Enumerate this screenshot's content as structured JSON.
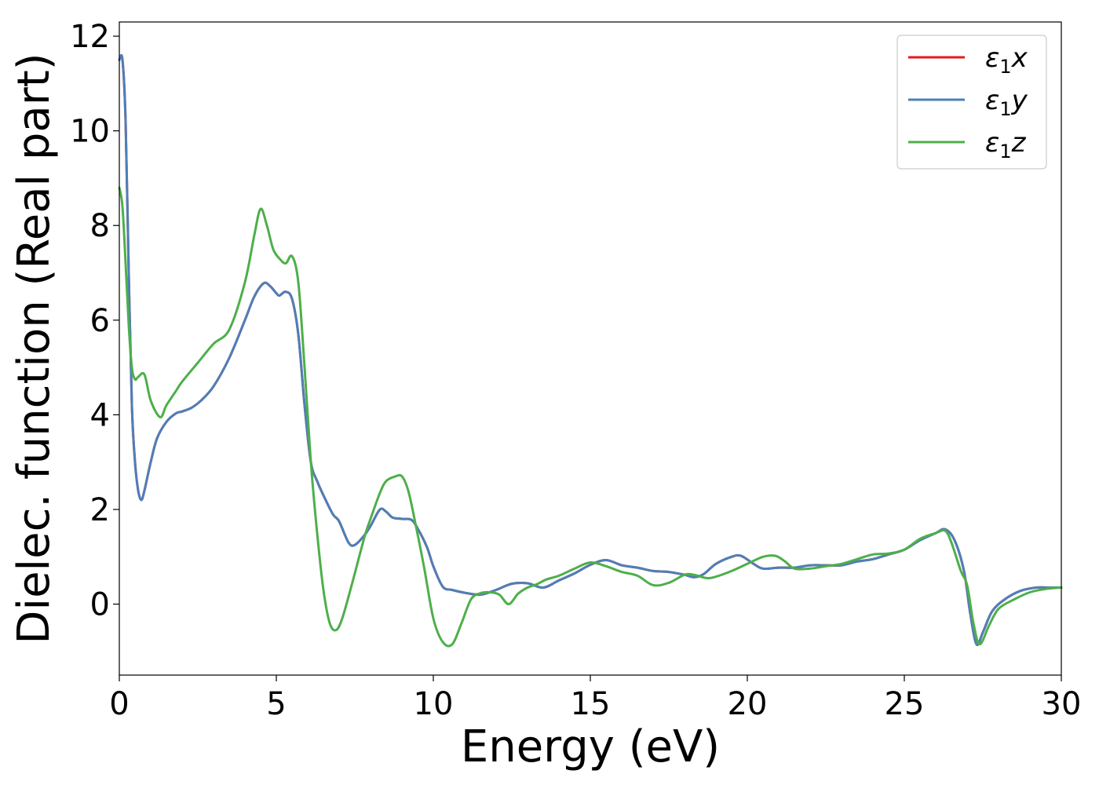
{
  "chart_data": {
    "type": "line",
    "xlabel": "Energy (eV)",
    "ylabel": "Dielec. function (Real part)",
    "xlim": [
      0,
      30
    ],
    "ylim": [
      -1.5,
      12.3
    ],
    "xticks": [
      0,
      5,
      10,
      15,
      20,
      25,
      30
    ],
    "yticks": [
      0,
      2,
      4,
      6,
      8,
      10,
      12
    ],
    "grid": false,
    "legend_position": "top-right",
    "legend": [
      {
        "symbol": "ε",
        "sub": "1",
        "axis": "x"
      },
      {
        "symbol": "ε",
        "sub": "1",
        "axis": "y"
      },
      {
        "symbol": "ε",
        "sub": "1",
        "axis": "z"
      }
    ],
    "series": [
      {
        "name": "ε1x",
        "color": "#e41a1c",
        "x": [
          0,
          0.1,
          0.2,
          0.3,
          0.4,
          0.5,
          0.6,
          0.7,
          0.8,
          1.0,
          1.2,
          1.5,
          1.8,
          2.0,
          2.3,
          2.6,
          3.0,
          3.5,
          4.0,
          4.3,
          4.6,
          4.8,
          5.0,
          5.1,
          5.3,
          5.5,
          5.7,
          5.9,
          6.1,
          6.3,
          6.5,
          6.8,
          7.0,
          7.3,
          7.5,
          7.8,
          8.0,
          8.3,
          8.5,
          8.7,
          9.0,
          9.3,
          9.5,
          9.8,
          10.0,
          10.3,
          10.6,
          11.0,
          11.5,
          12.0,
          12.5,
          13.0,
          13.5,
          14.0,
          14.5,
          15.0,
          15.5,
          16.0,
          16.5,
          17.0,
          17.5,
          18.0,
          18.3,
          18.6,
          19.0,
          19.5,
          19.8,
          20.2,
          20.5,
          21.0,
          21.5,
          22.0,
          22.5,
          23.0,
          23.5,
          24.0,
          24.5,
          25.0,
          25.5,
          26.0,
          26.3,
          26.6,
          26.9,
          27.1,
          27.3,
          27.5,
          27.8,
          28.2,
          28.7,
          29.2,
          29.6,
          30.0
        ],
        "values": [
          11.5,
          11.5,
          10.2,
          7.0,
          4.2,
          3.0,
          2.4,
          2.2,
          2.4,
          3.0,
          3.5,
          3.85,
          4.03,
          4.07,
          4.15,
          4.3,
          4.6,
          5.2,
          6.0,
          6.5,
          6.78,
          6.72,
          6.57,
          6.52,
          6.6,
          6.45,
          5.7,
          4.2,
          3.0,
          2.6,
          2.3,
          1.9,
          1.75,
          1.3,
          1.25,
          1.45,
          1.65,
          2.0,
          1.95,
          1.83,
          1.8,
          1.78,
          1.6,
          1.2,
          0.8,
          0.37,
          0.3,
          0.24,
          0.2,
          0.3,
          0.43,
          0.44,
          0.35,
          0.5,
          0.65,
          0.83,
          0.93,
          0.82,
          0.77,
          0.7,
          0.68,
          0.62,
          0.57,
          0.63,
          0.85,
          1.0,
          1.02,
          0.85,
          0.75,
          0.77,
          0.77,
          0.82,
          0.82,
          0.82,
          0.9,
          0.95,
          1.05,
          1.15,
          1.35,
          1.5,
          1.58,
          1.35,
          0.7,
          -0.2,
          -0.85,
          -0.6,
          -0.15,
          0.1,
          0.28,
          0.35,
          0.35,
          0.35
        ]
      },
      {
        "name": "ε1y",
        "color": "#4d7fb8",
        "x": [
          0,
          0.1,
          0.2,
          0.3,
          0.4,
          0.5,
          0.6,
          0.7,
          0.8,
          1.0,
          1.2,
          1.5,
          1.8,
          2.0,
          2.3,
          2.6,
          3.0,
          3.5,
          4.0,
          4.3,
          4.6,
          4.8,
          5.0,
          5.1,
          5.3,
          5.5,
          5.7,
          5.9,
          6.1,
          6.3,
          6.5,
          6.8,
          7.0,
          7.3,
          7.5,
          7.8,
          8.0,
          8.3,
          8.5,
          8.7,
          9.0,
          9.3,
          9.5,
          9.8,
          10.0,
          10.3,
          10.6,
          11.0,
          11.5,
          12.0,
          12.5,
          13.0,
          13.5,
          14.0,
          14.5,
          15.0,
          15.5,
          16.0,
          16.5,
          17.0,
          17.5,
          18.0,
          18.3,
          18.6,
          19.0,
          19.5,
          19.8,
          20.2,
          20.5,
          21.0,
          21.5,
          22.0,
          22.5,
          23.0,
          23.5,
          24.0,
          24.5,
          25.0,
          25.5,
          26.0,
          26.3,
          26.6,
          26.9,
          27.1,
          27.3,
          27.5,
          27.8,
          28.2,
          28.7,
          29.2,
          29.6,
          30.0
        ],
        "values": [
          11.5,
          11.5,
          10.2,
          7.0,
          4.2,
          3.0,
          2.4,
          2.2,
          2.4,
          3.0,
          3.5,
          3.85,
          4.03,
          4.07,
          4.15,
          4.3,
          4.6,
          5.2,
          6.0,
          6.5,
          6.78,
          6.72,
          6.57,
          6.52,
          6.6,
          6.45,
          5.7,
          4.2,
          3.0,
          2.6,
          2.3,
          1.9,
          1.75,
          1.3,
          1.25,
          1.45,
          1.65,
          2.0,
          1.95,
          1.83,
          1.8,
          1.78,
          1.6,
          1.2,
          0.8,
          0.37,
          0.3,
          0.24,
          0.2,
          0.3,
          0.43,
          0.44,
          0.35,
          0.5,
          0.65,
          0.83,
          0.93,
          0.82,
          0.77,
          0.7,
          0.68,
          0.62,
          0.57,
          0.63,
          0.85,
          1.0,
          1.02,
          0.85,
          0.75,
          0.77,
          0.77,
          0.82,
          0.82,
          0.82,
          0.9,
          0.95,
          1.05,
          1.15,
          1.35,
          1.5,
          1.58,
          1.35,
          0.7,
          -0.2,
          -0.85,
          -0.6,
          -0.15,
          0.1,
          0.28,
          0.35,
          0.35,
          0.35
        ]
      },
      {
        "name": "ε1z",
        "color": "#4daf4a",
        "x": [
          0,
          0.1,
          0.2,
          0.3,
          0.4,
          0.5,
          0.6,
          0.8,
          1.0,
          1.3,
          1.5,
          1.8,
          2.0,
          2.5,
          3.0,
          3.5,
          4.0,
          4.3,
          4.5,
          4.7,
          4.9,
          5.1,
          5.3,
          5.5,
          5.7,
          5.9,
          6.1,
          6.3,
          6.5,
          6.7,
          6.9,
          7.1,
          7.4,
          7.8,
          8.0,
          8.3,
          8.5,
          8.8,
          9.0,
          9.2,
          9.4,
          9.7,
          10.0,
          10.3,
          10.6,
          10.9,
          11.2,
          11.5,
          11.8,
          12.1,
          12.4,
          12.7,
          13.0,
          13.3,
          13.6,
          14.0,
          14.5,
          15.0,
          15.5,
          16.0,
          16.5,
          17.0,
          17.5,
          18.0,
          18.3,
          18.7,
          19.0,
          19.5,
          20.0,
          20.5,
          20.9,
          21.2,
          21.5,
          22.0,
          22.5,
          23.0,
          23.5,
          24.0,
          24.5,
          25.0,
          25.5,
          26.0,
          26.3,
          26.5,
          26.8,
          27.0,
          27.2,
          27.4,
          27.7,
          28.0,
          28.5,
          29.0,
          29.5,
          30.0
        ],
        "values": [
          8.8,
          8.4,
          7.2,
          5.9,
          5.0,
          4.75,
          4.8,
          4.85,
          4.3,
          3.95,
          4.2,
          4.5,
          4.7,
          5.1,
          5.5,
          5.8,
          6.8,
          7.8,
          8.35,
          8.0,
          7.5,
          7.3,
          7.2,
          7.35,
          6.8,
          5.0,
          3.0,
          1.5,
          0.3,
          -0.4,
          -0.55,
          -0.3,
          0.4,
          1.4,
          1.8,
          2.35,
          2.6,
          2.7,
          2.7,
          2.4,
          1.8,
          0.8,
          -0.3,
          -0.8,
          -0.85,
          -0.4,
          0.1,
          0.23,
          0.25,
          0.2,
          0.0,
          0.22,
          0.35,
          0.42,
          0.52,
          0.6,
          0.75,
          0.88,
          0.8,
          0.68,
          0.6,
          0.4,
          0.45,
          0.62,
          0.62,
          0.55,
          0.58,
          0.7,
          0.85,
          1.0,
          1.02,
          0.9,
          0.75,
          0.75,
          0.8,
          0.85,
          0.95,
          1.05,
          1.07,
          1.15,
          1.38,
          1.5,
          1.55,
          1.3,
          0.7,
          0.4,
          -0.4,
          -0.85,
          -0.45,
          -0.1,
          0.1,
          0.25,
          0.32,
          0.35
        ]
      }
    ]
  }
}
